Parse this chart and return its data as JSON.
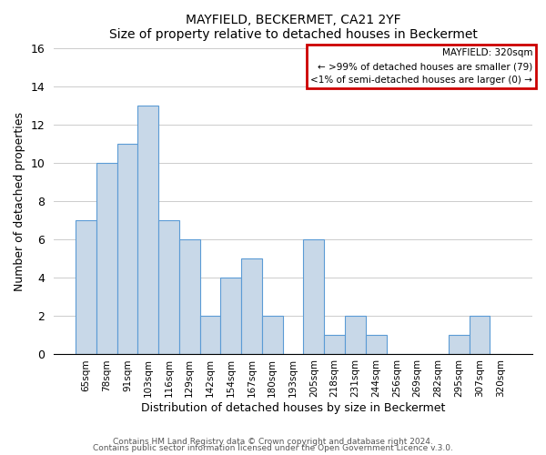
{
  "title": "MAYFIELD, BECKERMET, CA21 2YF",
  "subtitle": "Size of property relative to detached houses in Beckermet",
  "xlabel": "Distribution of detached houses by size in Beckermet",
  "ylabel": "Number of detached properties",
  "bar_labels": [
    "65sqm",
    "78sqm",
    "91sqm",
    "103sqm",
    "116sqm",
    "129sqm",
    "142sqm",
    "154sqm",
    "167sqm",
    "180sqm",
    "193sqm",
    "205sqm",
    "218sqm",
    "231sqm",
    "244sqm",
    "256sqm",
    "269sqm",
    "282sqm",
    "295sqm",
    "307sqm",
    "320sqm"
  ],
  "bar_values": [
    7,
    10,
    11,
    13,
    7,
    6,
    2,
    4,
    5,
    2,
    0,
    6,
    1,
    2,
    1,
    0,
    0,
    0,
    1,
    2,
    0
  ],
  "bar_color": "#c8d8e8",
  "bar_edge_color": "#5b9bd5",
  "ylim": [
    0,
    16
  ],
  "yticks": [
    0,
    2,
    4,
    6,
    8,
    10,
    12,
    14,
    16
  ],
  "legend_title": "MAYFIELD: 320sqm",
  "legend_line1": "← >99% of detached houses are smaller (79)",
  "legend_line2": "<1% of semi-detached houses are larger (0) →",
  "legend_box_color": "#ffffff",
  "legend_box_edge_color": "#cc0000",
  "footer1": "Contains HM Land Registry data © Crown copyright and database right 2024.",
  "footer2": "Contains public sector information licensed under the Open Government Licence v.3.0.",
  "grid_color": "#cccccc",
  "background_color": "#ffffff"
}
